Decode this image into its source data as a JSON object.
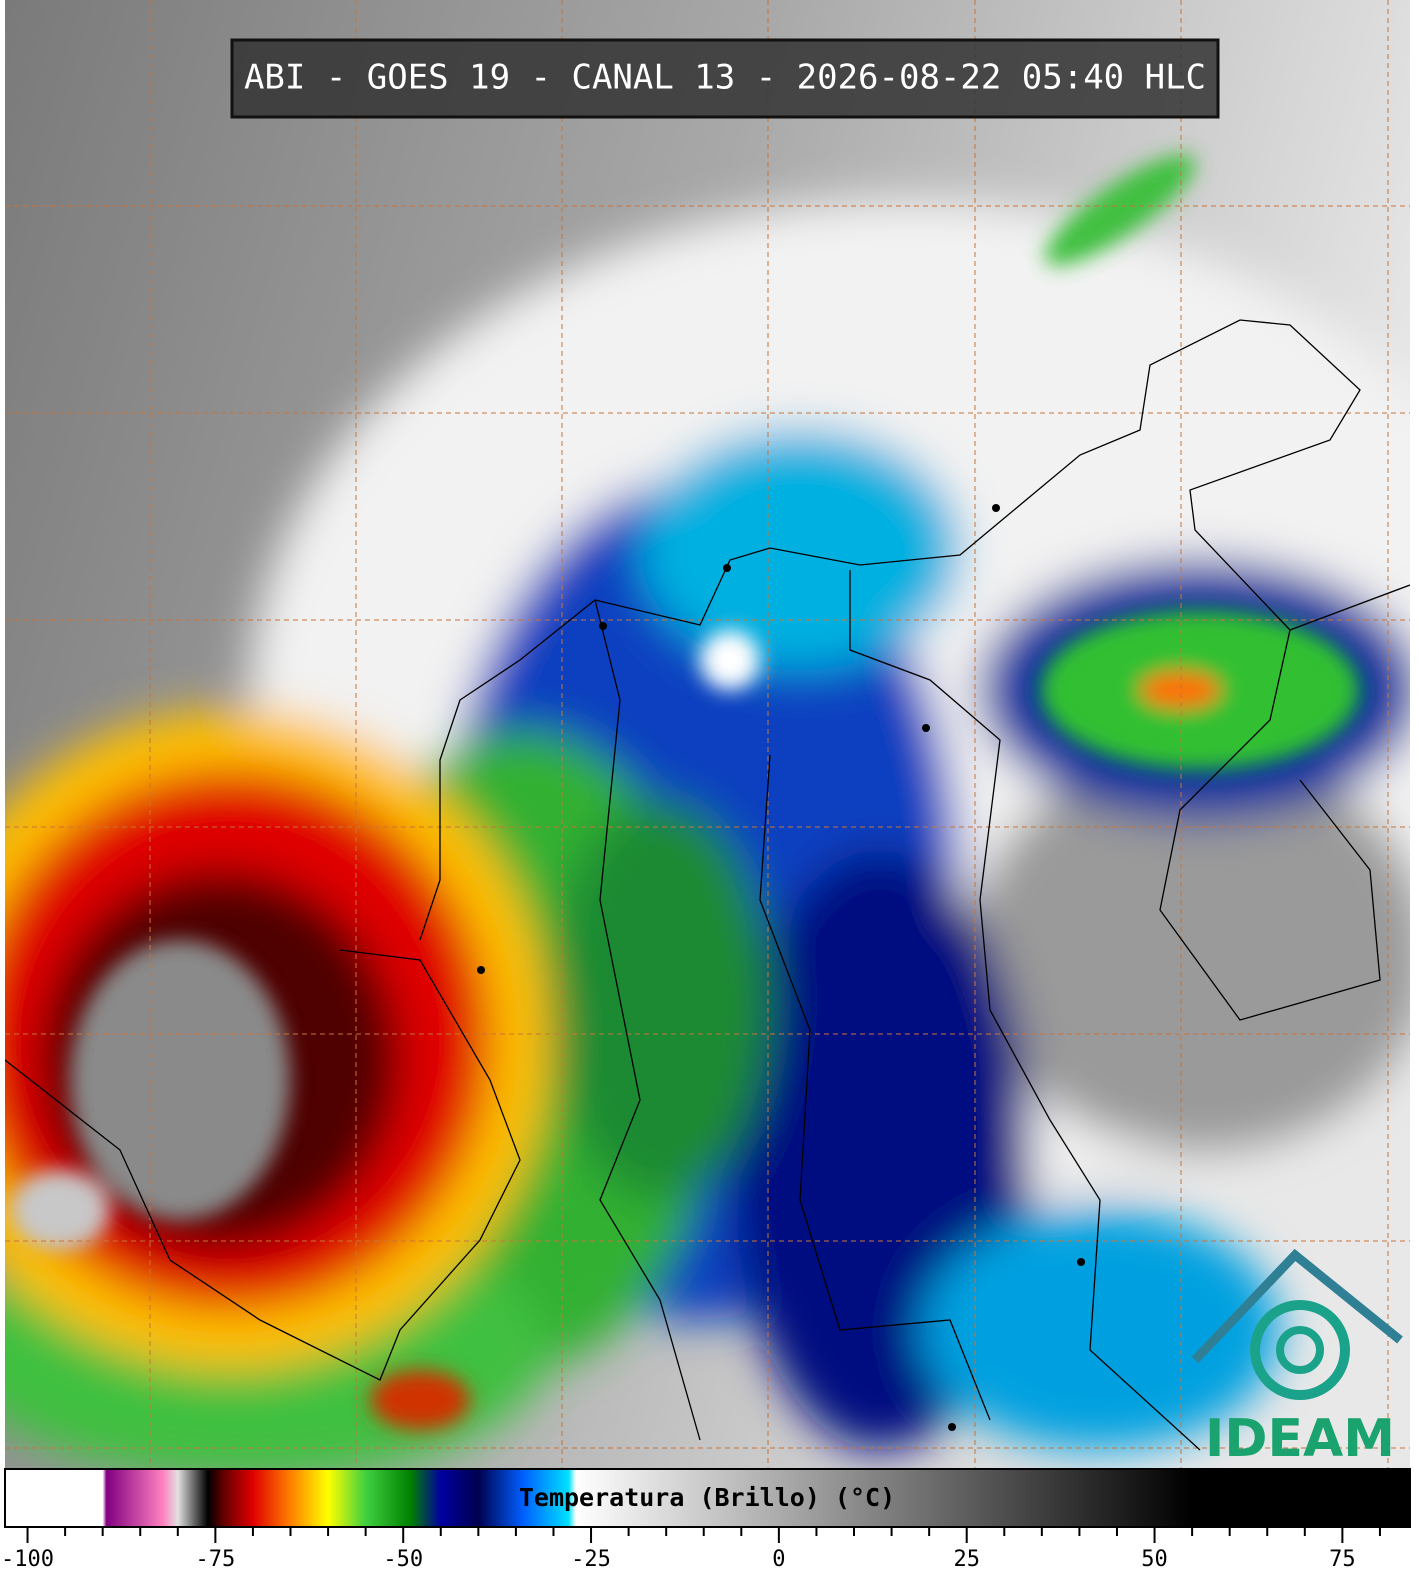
{
  "header": {
    "title": "ABI - GOES 19 - CANAL 13 - 2026-08-22 05:40 HLC"
  },
  "colorbar": {
    "label": "Temperatura (Brillo) (°C)",
    "lim": [
      -103,
      84
    ],
    "ticks": [
      -100,
      -75,
      -50,
      -25,
      0,
      25,
      50,
      75
    ],
    "minor_ticks": [
      -95,
      -90,
      -85,
      -80,
      -70,
      -65,
      -60,
      -55,
      -45,
      -40,
      -35,
      -30,
      -20,
      -15,
      -10,
      -5,
      5,
      10,
      15,
      20,
      30,
      35,
      40,
      45,
      55,
      60,
      65,
      70,
      80
    ],
    "stops": [
      {
        "value": -103,
        "color": "#ffffff"
      },
      {
        "value": -90,
        "color": "#ffffff"
      },
      {
        "value": -89.5,
        "color": "#800080"
      },
      {
        "value": -82,
        "color": "#ff80c0"
      },
      {
        "value": -80,
        "color": "#e0e0e0"
      },
      {
        "value": -76,
        "color": "#000000"
      },
      {
        "value": -74,
        "color": "#600000"
      },
      {
        "value": -70,
        "color": "#e00000"
      },
      {
        "value": -65,
        "color": "#ff8000"
      },
      {
        "value": -60,
        "color": "#ffff00"
      },
      {
        "value": -55,
        "color": "#40d040"
      },
      {
        "value": -49,
        "color": "#008000"
      },
      {
        "value": -45,
        "color": "#0000a0"
      },
      {
        "value": -40,
        "color": "#000050"
      },
      {
        "value": -34,
        "color": "#0060ff"
      },
      {
        "value": -28,
        "color": "#00e0ff"
      },
      {
        "value": -27,
        "color": "#ffffff"
      },
      {
        "value": 55,
        "color": "#000000"
      },
      {
        "value": 84,
        "color": "#000000"
      }
    ]
  },
  "logo": {
    "text": "IDEAM"
  }
}
